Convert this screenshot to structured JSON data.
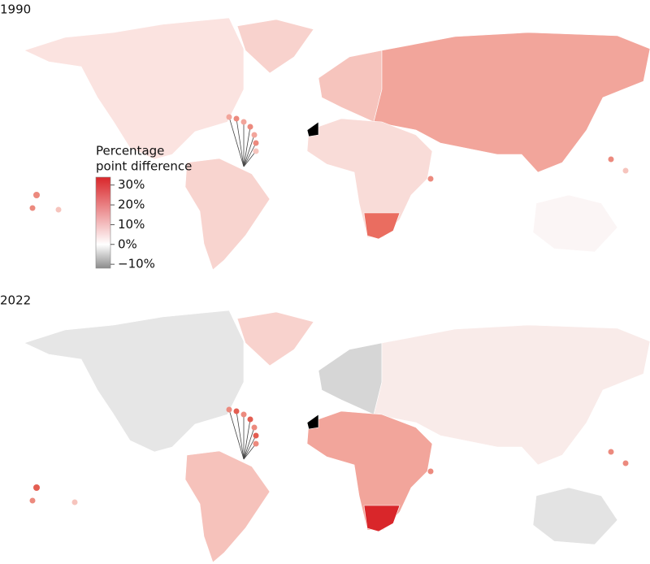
{
  "panels": [
    {
      "title": "1990"
    },
    {
      "title": "2022"
    }
  ],
  "legend": {
    "title_lines": [
      "Percentage",
      "point difference"
    ],
    "lim": [
      -12,
      34
    ],
    "ticks": [
      {
        "value": 30,
        "label": "30%"
      },
      {
        "value": 20,
        "label": "20%"
      },
      {
        "value": 10,
        "label": "10%"
      },
      {
        "value": 0,
        "label": "0%"
      },
      {
        "value": -10,
        "label": "−10%"
      }
    ]
  }
}
